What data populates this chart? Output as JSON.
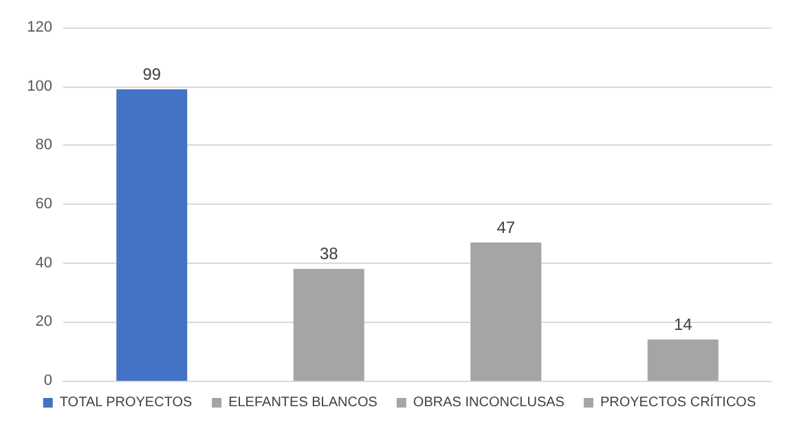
{
  "chart_data": {
    "type": "bar",
    "categories": [
      null,
      null,
      null,
      null
    ],
    "series": [
      {
        "name": "TOTAL PROYECTOS",
        "color": "#4472c4",
        "values": [
          99,
          null,
          null,
          null
        ]
      },
      {
        "name": "ELEFANTES BLANCOS",
        "color": "#a5a5a5",
        "values": [
          null,
          38,
          null,
          null
        ]
      },
      {
        "name": "OBRAS INCONCLUSAS",
        "color": "#a5a5a5",
        "values": [
          null,
          null,
          47,
          null
        ]
      },
      {
        "name": "PROYECTOS CRÍTICOS",
        "color": "#a5a5a5",
        "values": [
          null,
          null,
          null,
          14
        ]
      }
    ],
    "ylim": [
      0,
      120
    ],
    "yticks": [
      0,
      20,
      40,
      60,
      80,
      100,
      120
    ],
    "grid": "y",
    "legend": "bottom",
    "data_labels": true
  }
}
